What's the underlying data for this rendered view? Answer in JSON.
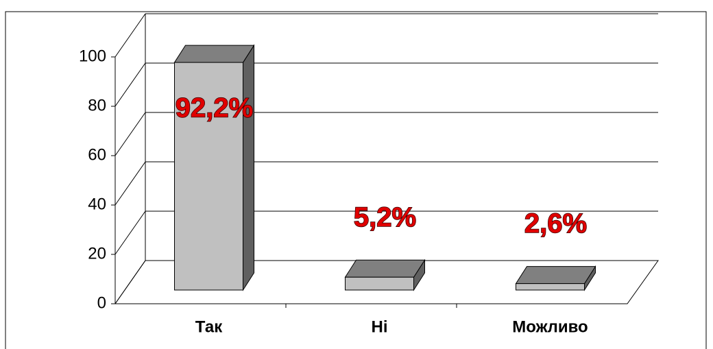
{
  "chart_data": {
    "type": "bar3d",
    "categories": [
      "Так",
      "Ні",
      "Можливо"
    ],
    "values": [
      92.2,
      5.2,
      2.6
    ],
    "value_labels": [
      "92,2%",
      "5,2%",
      "2,6%"
    ],
    "color": "#c0c0c0",
    "label_color": "#e00000",
    "ylim": [
      0,
      100
    ],
    "yticks": [
      0,
      20,
      40,
      60,
      80,
      100
    ],
    "grid": true
  }
}
